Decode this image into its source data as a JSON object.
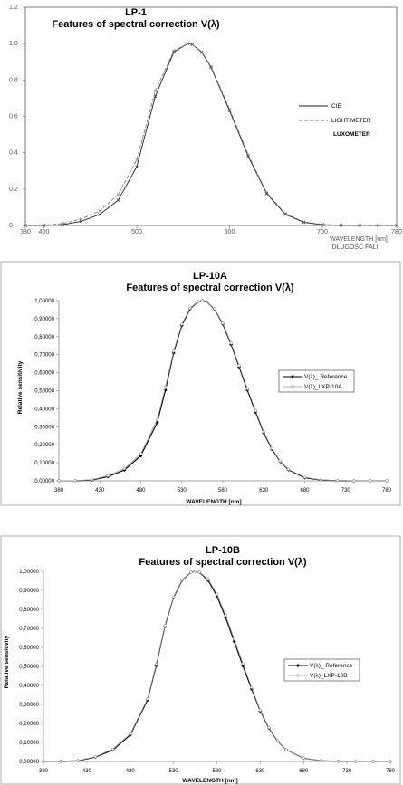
{
  "charts": [
    {
      "title": "LP-1",
      "subtitle": "Features of spectral correction V(λ)",
      "y_ticks": [
        "1.2",
        "1.0",
        "0.8",
        "0.6",
        "0.4",
        "0.2",
        "0"
      ],
      "x_ticks": [
        "380",
        "400",
        "500",
        "600",
        "700",
        "780"
      ],
      "xlabel_line1": "WAVELENGTH [nm]",
      "xlabel_line2": "DŁUGOŚĆ FALI",
      "legend": [
        "CIE",
        "LIGHT METER",
        "LUXOMETER"
      ]
    },
    {
      "title": "LP-10A",
      "subtitle": "Features of spectral correction V(λ)",
      "ylabel": "Relative sensitivity",
      "xlabel": "WAVELENGTH [nm]",
      "y_ticks": [
        "1,00000",
        "0,90000",
        "0,80000",
        "0,70000",
        "0,60000",
        "0,50000",
        "0,40000",
        "0,30000",
        "0,20000",
        "0,10000",
        "0,00000"
      ],
      "x_ticks": [
        "380",
        "430",
        "480",
        "530",
        "580",
        "630",
        "680",
        "730",
        "780"
      ],
      "legend": [
        "V(λ)_ Reference",
        "V(λ)_LXP-10A"
      ]
    },
    {
      "title": "LP-10B",
      "subtitle": "Features of spectral correction V(λ)",
      "ylabel": "Relative sensitivity",
      "xlabel": "WAVELENGTH [nm]",
      "y_ticks": [
        "1,00000",
        "0,90000",
        "0,80000",
        "0,70000",
        "0,60000",
        "0,50000",
        "0,40000",
        "0,30000",
        "0,20000",
        "0,10000",
        "0,00000"
      ],
      "x_ticks": [
        "380",
        "430",
        "480",
        "530",
        "580",
        "630",
        "680",
        "730",
        "780"
      ],
      "legend": [
        "V(λ)_ Reference",
        "V(λ)_LXP-10B"
      ]
    }
  ],
  "chart_data": [
    {
      "type": "line",
      "title": "LP-1",
      "subtitle": "Features of spectral correction V(λ)",
      "xlabel": "WAVELENGTH [nm] DŁUGOŚĆ FALI",
      "ylabel": "",
      "xlim": [
        380,
        780
      ],
      "ylim": [
        0,
        1.2
      ],
      "grid": false,
      "legend_position": "right",
      "x": [
        380,
        400,
        420,
        440,
        460,
        480,
        500,
        520,
        540,
        555,
        560,
        570,
        580,
        600,
        620,
        640,
        660,
        680,
        700,
        720,
        740,
        760,
        780
      ],
      "series": [
        {
          "name": "CIE",
          "values": [
            0.0,
            0.0004,
            0.004,
            0.023,
            0.06,
            0.139,
            0.323,
            0.71,
            0.954,
            1.0,
            0.995,
            0.952,
            0.87,
            0.631,
            0.381,
            0.175,
            0.061,
            0.017,
            0.004,
            0.001,
            0.0,
            0.0,
            0.0
          ]
        },
        {
          "name": "LIGHT METER",
          "values": [
            0.0,
            0.002,
            0.01,
            0.035,
            0.08,
            0.17,
            0.36,
            0.74,
            0.96,
            1.0,
            0.995,
            0.955,
            0.875,
            0.64,
            0.39,
            0.18,
            0.065,
            0.02,
            0.006,
            0.002,
            0.0,
            0.0,
            0.0
          ]
        }
      ]
    },
    {
      "type": "line",
      "title": "LP-10A",
      "subtitle": "Features of spectral correction V(λ)",
      "xlabel": "WAVELENGTH [nm]",
      "ylabel": "Relative sensitivity",
      "xlim": [
        380,
        780
      ],
      "ylim": [
        0,
        1
      ],
      "grid": false,
      "legend_position": "right",
      "x": [
        380,
        400,
        420,
        440,
        460,
        480,
        500,
        510,
        520,
        530,
        540,
        550,
        555,
        560,
        570,
        580,
        590,
        600,
        610,
        620,
        630,
        640,
        650,
        660,
        680,
        700,
        720,
        740,
        760,
        780
      ],
      "series": [
        {
          "name": "V(λ)_ Reference",
          "values": [
            0.0,
            0.0004,
            0.004,
            0.023,
            0.06,
            0.139,
            0.323,
            0.503,
            0.71,
            0.862,
            0.954,
            0.995,
            1.0,
            0.995,
            0.952,
            0.87,
            0.757,
            0.631,
            0.503,
            0.381,
            0.265,
            0.175,
            0.107,
            0.061,
            0.017,
            0.004,
            0.001,
            0.0,
            0.0,
            0.0
          ]
        },
        {
          "name": "V(λ)_LXP-10A",
          "values": [
            0.0,
            0.001,
            0.006,
            0.028,
            0.068,
            0.15,
            0.34,
            0.52,
            0.72,
            0.87,
            0.958,
            0.996,
            1.0,
            0.994,
            0.955,
            0.875,
            0.765,
            0.64,
            0.512,
            0.39,
            0.272,
            0.18,
            0.11,
            0.064,
            0.02,
            0.005,
            0.002,
            0.0,
            0.0,
            0.0
          ]
        }
      ]
    },
    {
      "type": "line",
      "title": "LP-10B",
      "subtitle": "Features of spectral correction V(λ)",
      "xlabel": "WAVELENGTH [nm]",
      "ylabel": "Relative sensitivity",
      "xlim": [
        380,
        780
      ],
      "ylim": [
        0,
        1
      ],
      "grid": false,
      "legend_position": "right",
      "x": [
        380,
        400,
        420,
        440,
        460,
        480,
        500,
        510,
        520,
        530,
        540,
        550,
        555,
        560,
        570,
        580,
        590,
        600,
        610,
        620,
        630,
        640,
        650,
        660,
        680,
        700,
        720,
        740,
        760,
        780
      ],
      "series": [
        {
          "name": "V(λ)_ Reference",
          "values": [
            0.0,
            0.0004,
            0.004,
            0.023,
            0.06,
            0.139,
            0.323,
            0.503,
            0.71,
            0.862,
            0.954,
            0.995,
            1.0,
            0.995,
            0.952,
            0.87,
            0.757,
            0.631,
            0.503,
            0.381,
            0.265,
            0.175,
            0.107,
            0.061,
            0.017,
            0.004,
            0.001,
            0.0,
            0.0,
            0.0
          ]
        },
        {
          "name": "V(λ)_LXP-10B",
          "values": [
            0.0,
            0.001,
            0.005,
            0.025,
            0.065,
            0.145,
            0.33,
            0.51,
            0.715,
            0.865,
            0.956,
            0.995,
            1.0,
            0.996,
            0.958,
            0.88,
            0.77,
            0.645,
            0.515,
            0.39,
            0.27,
            0.178,
            0.108,
            0.062,
            0.018,
            0.004,
            0.001,
            0.0,
            0.0,
            0.0
          ]
        }
      ]
    }
  ]
}
